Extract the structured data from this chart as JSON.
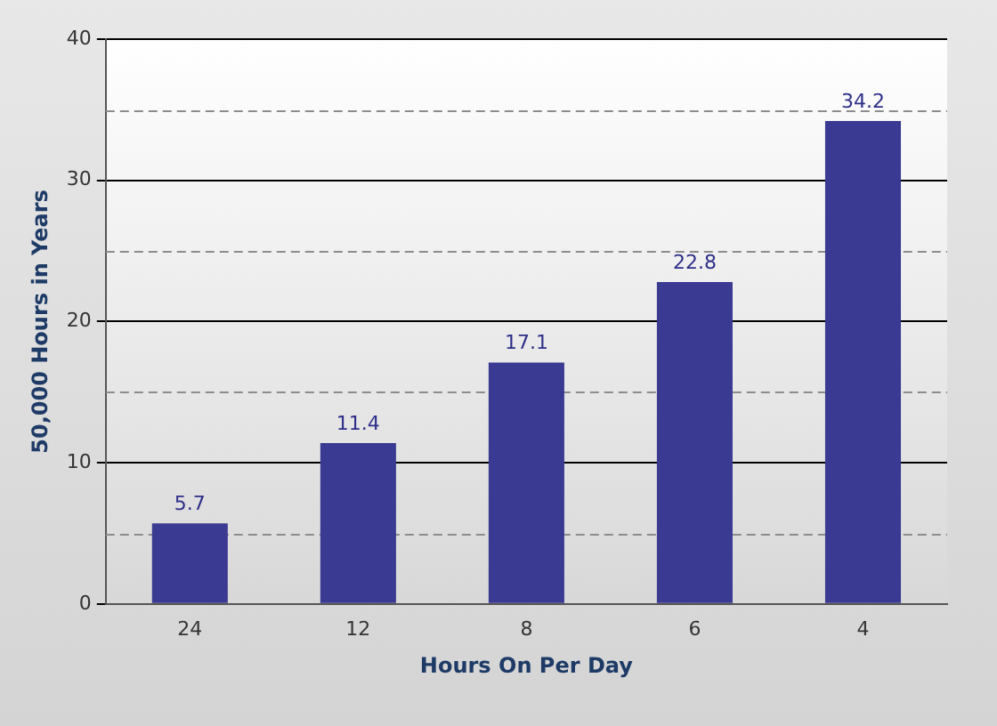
{
  "chart_data": {
    "type": "bar",
    "xlabel": "Hours On Per Day",
    "ylabel": "50,000 Hours in Years",
    "categories": [
      "24",
      "12",
      "8",
      "6",
      "4"
    ],
    "values": [
      5.7,
      11.4,
      17.1,
      22.8,
      34.2
    ],
    "color": "#3a3a92",
    "ylim": [
      0,
      40
    ],
    "yticks": [
      0,
      {
        "value": 5,
        "label": null
      },
      10,
      {
        "value": 15,
        "label": null
      },
      20,
      {
        "value": 25,
        "label": null
      },
      30,
      {
        "value": 35,
        "label": null
      },
      40
    ],
    "grid": "y",
    "data_labels": true,
    "legend": false
  }
}
